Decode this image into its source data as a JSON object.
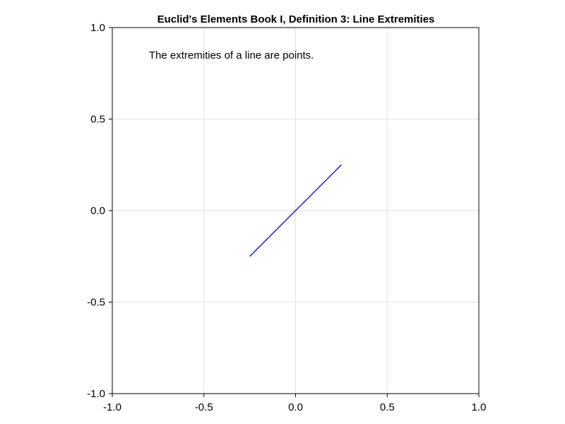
{
  "chart_data": {
    "type": "line",
    "title": "Euclid's Elements Book I, Definition 3: Line Extremities",
    "xlabel": "",
    "ylabel": "",
    "xlim": [
      -1.0,
      1.0
    ],
    "ylim": [
      -1.0,
      1.0
    ],
    "x_ticks": [
      "-1.0",
      "-0.5",
      "0.0",
      "0.5",
      "1.0"
    ],
    "y_ticks": [
      "1.0",
      "0.5",
      "0.0",
      "-0.5",
      "-1.0"
    ],
    "grid": true,
    "series": [
      {
        "x": [
          -0.25,
          0.25
        ],
        "y": [
          -0.25,
          0.25
        ],
        "color": "#0000ff"
      }
    ],
    "annotations": [
      {
        "text": "The extremities of a line are points.",
        "x": -0.8,
        "y": 0.83
      }
    ]
  }
}
